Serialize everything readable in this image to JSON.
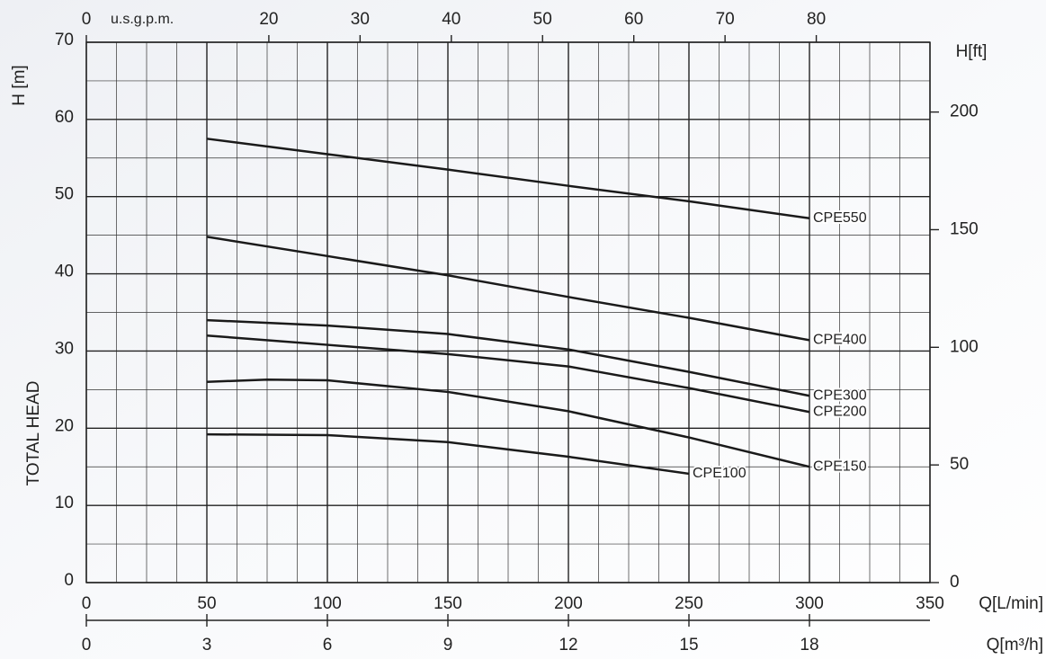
{
  "chart_data": {
    "type": "line",
    "xlabel": "Q[L/min]",
    "xlim": [
      0,
      350
    ],
    "xticks": [
      0,
      50,
      100,
      150,
      200,
      250,
      300,
      350
    ],
    "x2label": "u.s.g.p.m.",
    "x2lim": [
      0,
      92.46
    ],
    "x2ticks": [
      0,
      20,
      30,
      40,
      50,
      60,
      70,
      80
    ],
    "x3label": "Q[m³/h]",
    "x3lim": [
      0,
      21
    ],
    "x3ticks": [
      0,
      3,
      6,
      9,
      12,
      15,
      18
    ],
    "ylabel": "H [m]",
    "ytitle": "TOTAL HEAD",
    "ylim": [
      0,
      70
    ],
    "yticks": [
      0,
      10,
      20,
      30,
      40,
      50,
      60,
      70
    ],
    "y2label": "H[ft]",
    "y2lim": [
      0,
      229.66
    ],
    "y2ticks": [
      0,
      50,
      100,
      150,
      200
    ],
    "grid": true,
    "series": [
      {
        "name": "CPE550",
        "color": "#1a1a1a",
        "x": [
          50,
          100,
          150,
          200,
          250,
          300
        ],
        "values": [
          57.5,
          55.5,
          53.5,
          51.4,
          49.4,
          47.2
        ]
      },
      {
        "name": "CPE400",
        "color": "#1a1a1a",
        "x": [
          50,
          100,
          150,
          200,
          250,
          300
        ],
        "values": [
          44.8,
          42.3,
          39.8,
          37,
          34.3,
          31.4
        ]
      },
      {
        "name": "CPE300",
        "color": "#1a1a1a",
        "x": [
          50,
          100,
          150,
          200,
          250,
          300
        ],
        "values": [
          34,
          33.3,
          32.2,
          30.2,
          27.3,
          24.2
        ]
      },
      {
        "name": "CPE200",
        "color": "#1a1a1a",
        "x": [
          50,
          100,
          150,
          200,
          250,
          300
        ],
        "values": [
          32,
          30.8,
          29.6,
          28,
          25.2,
          22.1
        ]
      },
      {
        "name": "CPE150",
        "color": "#1a1a1a",
        "x": [
          50,
          75,
          100,
          150,
          200,
          250,
          300
        ],
        "values": [
          26,
          26.3,
          26.2,
          24.7,
          22.2,
          18.8,
          15
        ]
      },
      {
        "name": "CPE100",
        "color": "#1a1a1a",
        "x": [
          50,
          100,
          150,
          200,
          250
        ],
        "values": [
          19.2,
          19.1,
          18.2,
          16.3,
          14.1
        ]
      }
    ]
  }
}
